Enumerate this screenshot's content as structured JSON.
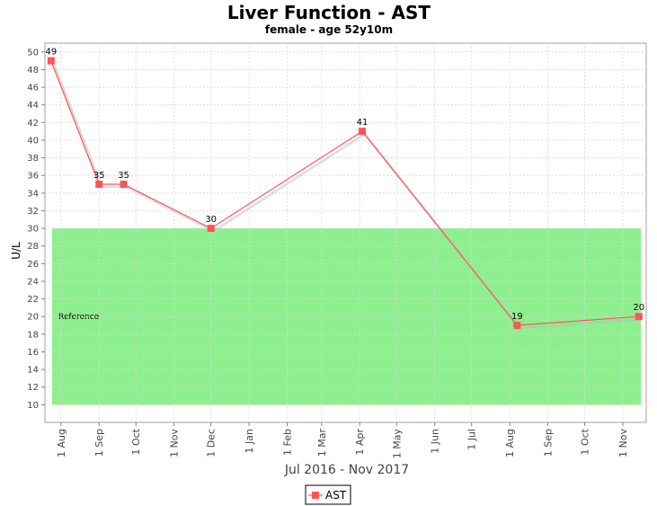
{
  "chart_data": {
    "type": "line",
    "title": "Liver Function - AST",
    "subtitle": "female - age 52y10m",
    "xlabel": "Jul 2016 - Nov 2017",
    "ylabel": "U/L",
    "ylim": [
      8,
      51
    ],
    "y_ticks": [
      10,
      12,
      14,
      16,
      18,
      20,
      22,
      24,
      26,
      28,
      30,
      32,
      34,
      36,
      38,
      40,
      42,
      44,
      46,
      48,
      50
    ],
    "xlim": [
      "2016-07-19",
      "2017-11-20"
    ],
    "x_ticks": [
      {
        "label": "1 Aug",
        "date": "2016-08-01"
      },
      {
        "label": "1 Sep",
        "date": "2016-09-01"
      },
      {
        "label": "1 Oct",
        "date": "2016-10-01"
      },
      {
        "label": "1 Nov",
        "date": "2016-11-01"
      },
      {
        "label": "1 Dec",
        "date": "2016-12-01"
      },
      {
        "label": "1 Jan",
        "date": "2017-01-01"
      },
      {
        "label": "1 Feb",
        "date": "2017-02-01"
      },
      {
        "label": "1 Mar",
        "date": "2017-03-01"
      },
      {
        "label": "1 Apr",
        "date": "2017-04-01"
      },
      {
        "label": "1 May",
        "date": "2017-05-01"
      },
      {
        "label": "1 Jun",
        "date": "2017-06-01"
      },
      {
        "label": "1 Jul",
        "date": "2017-07-01"
      },
      {
        "label": "1 Aug",
        "date": "2017-08-01"
      },
      {
        "label": "1 Sep",
        "date": "2017-09-01"
      },
      {
        "label": "1 Oct",
        "date": "2017-10-01"
      },
      {
        "label": "1 Nov",
        "date": "2017-11-01"
      }
    ],
    "series": [
      {
        "name": "AST",
        "color": "#ff5555",
        "points": [
          {
            "date": "2016-07-24",
            "value": 49
          },
          {
            "date": "2016-09-01",
            "value": 35
          },
          {
            "date": "2016-09-21",
            "value": 35
          },
          {
            "date": "2016-12-01",
            "value": 30
          },
          {
            "date": "2017-04-03",
            "value": 41
          },
          {
            "date": "2017-08-07",
            "value": 19
          },
          {
            "date": "2017-11-14",
            "value": 20
          }
        ]
      }
    ],
    "reference_range": {
      "label": "Reference",
      "low": 10,
      "high": 30,
      "color": "#88ee88"
    },
    "grid": true,
    "legend": {
      "position": "bottom"
    }
  }
}
